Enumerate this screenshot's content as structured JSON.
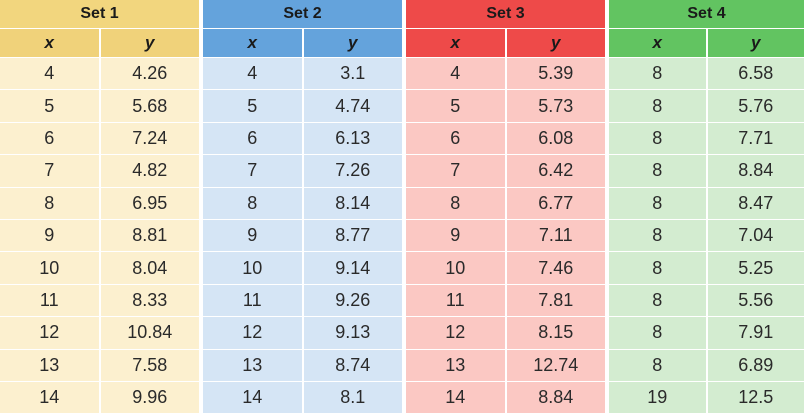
{
  "chart_data": {
    "type": "table",
    "columns": [
      "x",
      "y"
    ],
    "sets": [
      {
        "name": "Set 1",
        "colors": {
          "title": "#f2d67e",
          "header": "#f0d27a",
          "cell": "#fcf0cf"
        },
        "x": [
          4,
          5,
          6,
          7,
          8,
          9,
          10,
          11,
          12,
          13,
          14
        ],
        "y": [
          "4.26",
          "5.68",
          "7.24",
          "4.82",
          "6.95",
          "8.81",
          "8.04",
          "8.33",
          "10.84",
          "7.58",
          "9.96"
        ]
      },
      {
        "name": "Set 2",
        "colors": {
          "title": "#64a3dc",
          "header": "#64a3dc",
          "cell": "#d5e5f5"
        },
        "x": [
          4,
          5,
          6,
          7,
          8,
          9,
          10,
          11,
          12,
          13,
          14
        ],
        "y": [
          "3.1",
          "4.74",
          "6.13",
          "7.26",
          "8.14",
          "8.77",
          "9.14",
          "9.26",
          "9.13",
          "8.74",
          "8.1"
        ]
      },
      {
        "name": "Set 3",
        "colors": {
          "title": "#ee4a49",
          "header": "#ee4a49",
          "cell": "#fbc8c3"
        },
        "x": [
          4,
          5,
          6,
          7,
          8,
          9,
          10,
          11,
          12,
          13,
          14
        ],
        "y": [
          "5.39",
          "5.73",
          "6.08",
          "6.42",
          "6.77",
          "7.11",
          "7.46",
          "7.81",
          "8.15",
          "12.74",
          "8.84"
        ]
      },
      {
        "name": "Set 4",
        "colors": {
          "title": "#62c461",
          "header": "#62c461",
          "cell": "#d3ecd0"
        },
        "x": [
          8,
          8,
          8,
          8,
          8,
          8,
          8,
          8,
          8,
          8,
          19
        ],
        "y": [
          "6.58",
          "5.76",
          "7.71",
          "8.84",
          "8.47",
          "7.04",
          "5.25",
          "5.56",
          "7.91",
          "6.89",
          "12.5"
        ]
      }
    ]
  }
}
